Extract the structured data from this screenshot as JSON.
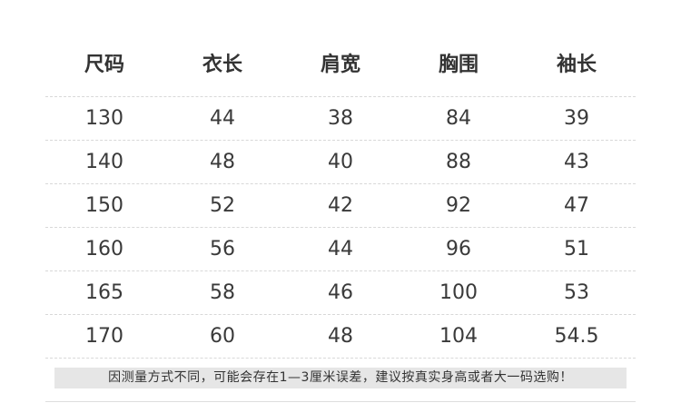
{
  "headers": [
    "尺码",
    "衣长",
    "肩宽",
    "胸围",
    "袖长"
  ],
  "rows": [
    [
      "130",
      "44",
      "38",
      "84",
      "39"
    ],
    [
      "140",
      "48",
      "40",
      "88",
      "43"
    ],
    [
      "150",
      "52",
      "42",
      "92",
      "47"
    ],
    [
      "160",
      "56",
      "44",
      "96",
      "51"
    ],
    [
      "165",
      "58",
      "46",
      "100",
      "53"
    ],
    [
      "170",
      "60",
      "48",
      "104",
      "54.5"
    ]
  ],
  "note": "因测量方式不同，可能会存在1—3厘米误差，建议按真实身高或者大一码选购！"
}
